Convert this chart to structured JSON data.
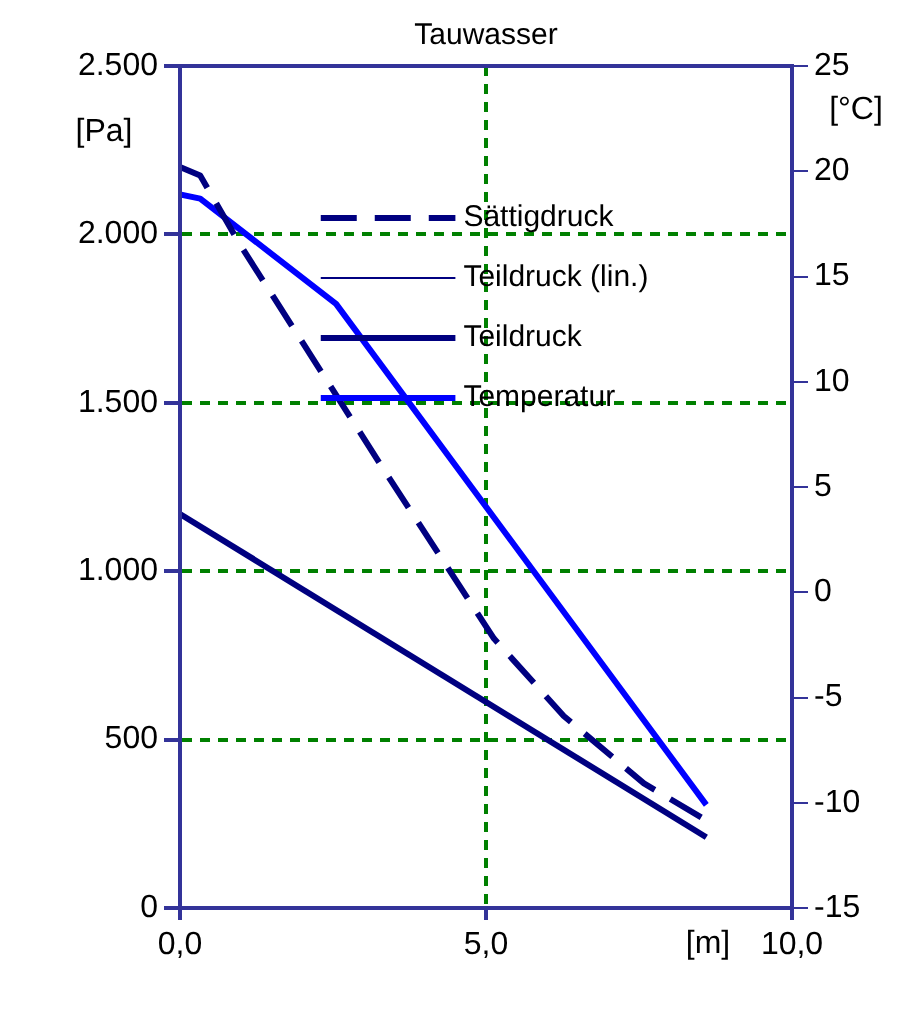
{
  "chart_data": {
    "type": "line",
    "title": "Tauwasser",
    "xlabel": "[m]",
    "ylabel": "[Pa]",
    "y2label": "[°C]",
    "xlim": [
      0,
      10
    ],
    "xticks": [
      {
        "value": 0,
        "label": "0,0"
      },
      {
        "value": 5,
        "label": "5,0"
      },
      {
        "value": 10,
        "label": "10,0"
      }
    ],
    "ylim": [
      0,
      2500
    ],
    "yticks": [
      0,
      {
        "value": 500,
        "label": "500"
      },
      {
        "value": 1000,
        "label": "1.000"
      },
      {
        "value": 1500,
        "label": "1.500"
      },
      {
        "value": 2000,
        "label": "2.000"
      },
      {
        "value": 2500,
        "label": "2.500"
      }
    ],
    "y2lim": [
      -15,
      25
    ],
    "y2ticks": [
      -15,
      -10,
      -5,
      0,
      5,
      10,
      15,
      20,
      25
    ],
    "grid": true,
    "legend": "top",
    "marker": "none",
    "series": [
      {
        "name": "Sättigdruck",
        "color": "#000080",
        "line_style": "dashed",
        "x": [
          0,
          0.33,
          0.98,
          3.37,
          5.13,
          6.27,
          7.58,
          8.6
        ],
        "values": [
          2200,
          2175,
          1970,
          1290,
          800,
          570,
          370,
          260
        ]
      },
      {
        "name": "Teildruck (lin.)",
        "color": "#000080",
        "line_style": "solid"
      },
      {
        "name": "Teildruck",
        "color": "#000080",
        "line_style": "solid",
        "x": [
          0,
          8.6
        ],
        "values": [
          1170,
          210
        ]
      },
      {
        "name": "Temperatur",
        "color": "#0000ff",
        "line_style": "solid",
        "axis": "y2",
        "x": [
          0,
          0.33,
          2.55,
          8.6
        ],
        "values": [
          18.9,
          18.7,
          13.7,
          -10.1
        ]
      }
    ]
  }
}
